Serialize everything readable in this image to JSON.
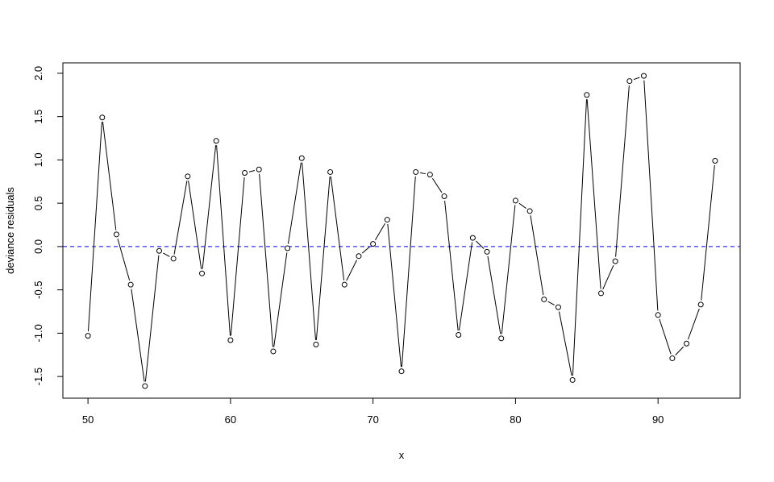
{
  "chart_data": {
    "type": "line",
    "markers": "open-circle",
    "title": "",
    "xlabel": "x",
    "ylabel": "deviance residuals",
    "xlim": [
      48.24,
      95.76
    ],
    "ylim": [
      -1.75,
      2.12
    ],
    "x_ticks": [
      50,
      60,
      70,
      80,
      90
    ],
    "y_ticks": [
      -1.5,
      -1.0,
      -0.5,
      0.0,
      0.5,
      1.0,
      1.5,
      2.0
    ],
    "x_tick_labels": [
      "50",
      "60",
      "70",
      "80",
      "90"
    ],
    "y_tick_labels": [
      "-1.5",
      "-1.0",
      "-0.5",
      "0.0",
      "0.5",
      "1.0",
      "1.5",
      "2.0"
    ],
    "grid": false,
    "x": [
      50,
      51,
      52,
      53,
      54,
      55,
      56,
      57,
      58,
      59,
      60,
      61,
      62,
      63,
      64,
      65,
      66,
      67,
      68,
      69,
      70,
      71,
      72,
      73,
      74,
      75,
      76,
      77,
      78,
      79,
      80,
      81,
      82,
      83,
      84,
      85,
      86,
      87,
      88,
      89,
      90,
      91,
      92,
      93,
      94
    ],
    "y": [
      -1.03,
      1.49,
      0.14,
      -0.44,
      -1.61,
      -0.05,
      -0.14,
      0.81,
      -0.31,
      1.22,
      -1.08,
      0.85,
      0.89,
      -1.21,
      -0.02,
      1.02,
      -1.13,
      0.86,
      -0.44,
      -0.11,
      0.03,
      0.31,
      -1.44,
      0.86,
      0.83,
      0.58,
      -1.02,
      0.1,
      -0.06,
      -1.06,
      0.53,
      0.41,
      -0.61,
      -0.7,
      -1.54,
      1.75,
      -0.54,
      -0.17,
      1.91,
      1.97,
      -0.79,
      -1.29,
      -1.12,
      -0.67,
      0.99
    ],
    "reference_line": {
      "y": 0,
      "style": "dashed",
      "color": "#0000ff"
    },
    "series_color": "#000000"
  }
}
